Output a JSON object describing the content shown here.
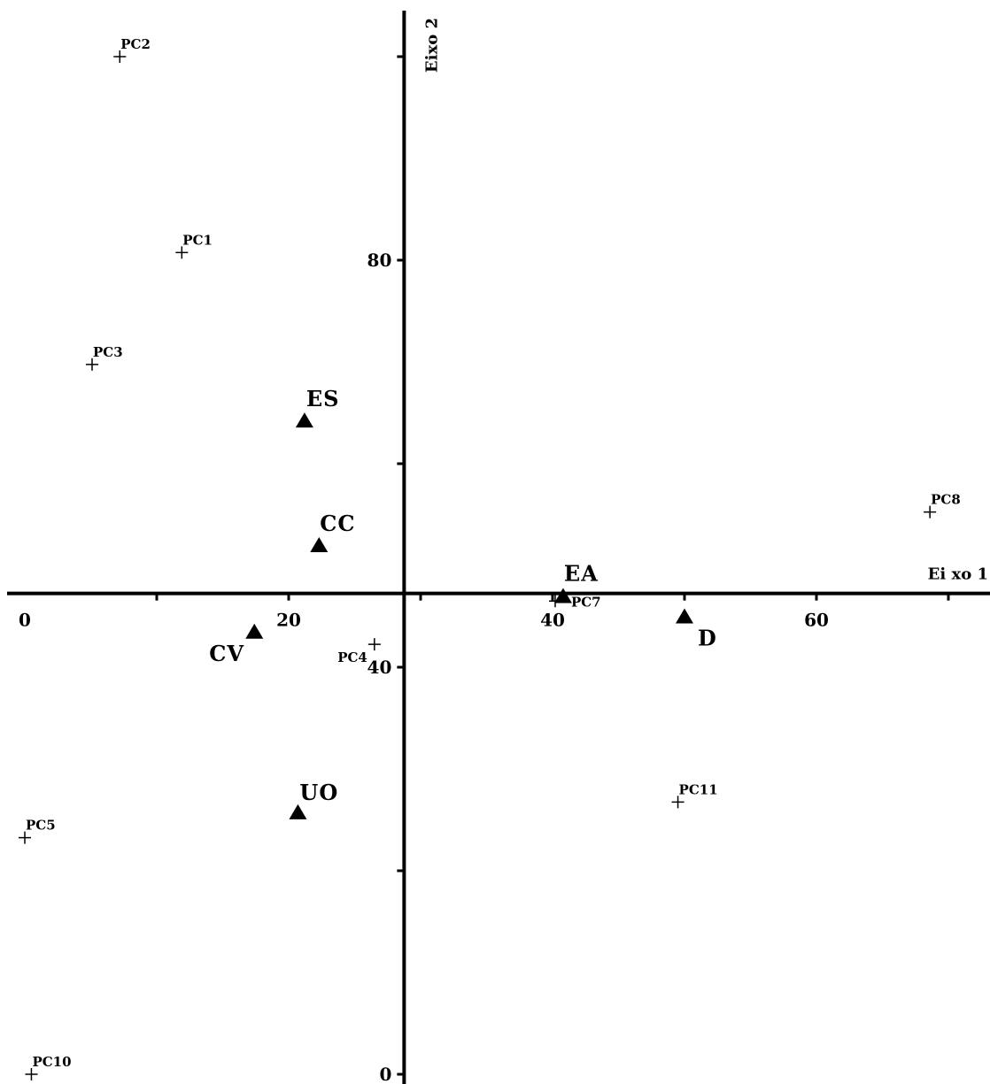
{
  "chart_data": {
    "type": "scatter",
    "xlabel": "Ei xo 1",
    "ylabel": "Eixo 2",
    "x_ticks": [
      0,
      20,
      40,
      60
    ],
    "y_ticks": [
      0,
      40,
      80
    ],
    "xlim": [
      -1.5,
      73
    ],
    "ylim": [
      0,
      113.5
    ],
    "x_axis_at_y": 47.25,
    "y_axis_at_x": 28.75,
    "grid": false,
    "series": [
      {
        "marker": "plus",
        "points": [
          {
            "label": "PC1",
            "x": 11.9,
            "y": 80.75
          },
          {
            "label": "PC2",
            "x": 7.2,
            "y": 100
          },
          {
            "label": "PC3",
            "x": 5.1,
            "y": 69.75
          },
          {
            "label": "PC4",
            "x": 26.5,
            "y": 42.25
          },
          {
            "label": "PC5",
            "x": 0,
            "y": 23.25
          },
          {
            "label": "PC7",
            "x": 40.2,
            "y": 46.5
          },
          {
            "label": "PC8",
            "x": 68.6,
            "y": 55.25
          },
          {
            "label": "PC10",
            "x": 0.5,
            "y": 0
          },
          {
            "label": "PC11",
            "x": 49.5,
            "y": 26.75
          }
        ]
      },
      {
        "marker": "triangle",
        "points": [
          {
            "label": "ES",
            "x": 21.2,
            "y": 64.25
          },
          {
            "label": "CC",
            "x": 22.3,
            "y": 52
          },
          {
            "label": "EA",
            "x": 40.8,
            "y": 47
          },
          {
            "label": "CV",
            "x": 17.4,
            "y": 43.5
          },
          {
            "label": "D",
            "x": 50,
            "y": 45
          },
          {
            "label": "UO",
            "x": 20.7,
            "y": 25.75
          }
        ]
      }
    ]
  }
}
